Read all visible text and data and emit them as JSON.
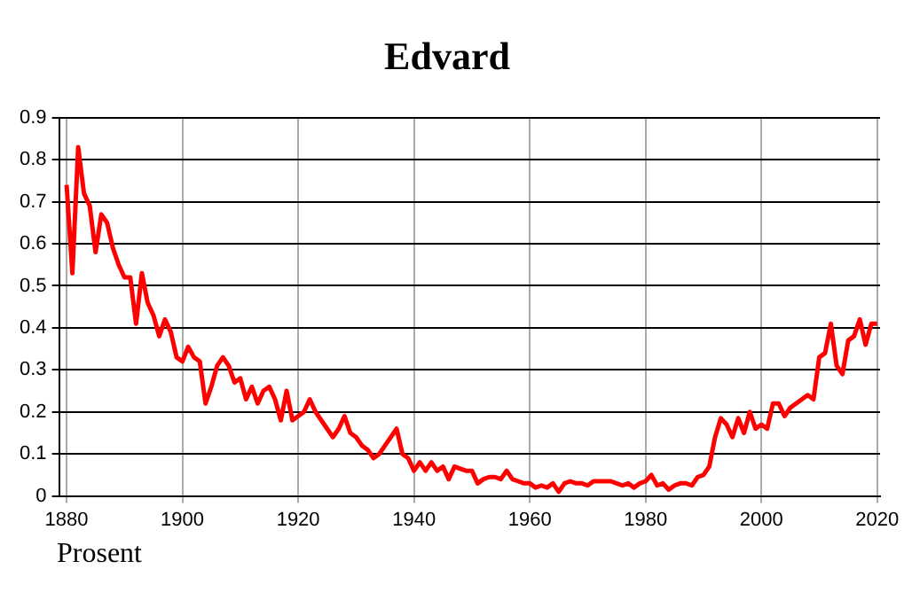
{
  "chart_data": {
    "type": "line",
    "title": "Edvard",
    "annotations": [
      "Prosent"
    ],
    "x": [
      1880,
      1881,
      1882,
      1883,
      1884,
      1885,
      1886,
      1887,
      1888,
      1889,
      1890,
      1891,
      1892,
      1893,
      1894,
      1895,
      1896,
      1897,
      1898,
      1899,
      1900,
      1901,
      1902,
      1903,
      1904,
      1905,
      1906,
      1907,
      1908,
      1909,
      1910,
      1911,
      1912,
      1913,
      1914,
      1915,
      1916,
      1917,
      1918,
      1919,
      1920,
      1921,
      1922,
      1923,
      1924,
      1925,
      1926,
      1927,
      1928,
      1929,
      1930,
      1931,
      1932,
      1933,
      1934,
      1935,
      1936,
      1937,
      1938,
      1939,
      1940,
      1941,
      1942,
      1943,
      1944,
      1945,
      1946,
      1947,
      1948,
      1949,
      1950,
      1951,
      1952,
      1953,
      1954,
      1955,
      1956,
      1957,
      1958,
      1959,
      1960,
      1961,
      1962,
      1963,
      1964,
      1965,
      1966,
      1967,
      1968,
      1969,
      1970,
      1971,
      1972,
      1973,
      1974,
      1975,
      1976,
      1977,
      1978,
      1979,
      1980,
      1981,
      1982,
      1983,
      1984,
      1985,
      1986,
      1987,
      1988,
      1989,
      1990,
      1991,
      1992,
      1993,
      1994,
      1995,
      1996,
      1997,
      1998,
      1999,
      2000,
      2001,
      2002,
      2003,
      2004,
      2005,
      2006,
      2007,
      2008,
      2009,
      2010,
      2011,
      2012,
      2013,
      2014,
      2015,
      2016,
      2017,
      2018,
      2019,
      2020
    ],
    "series": [
      {
        "color": "#ff0000",
        "values": [
          0.74,
          0.53,
          0.83,
          0.72,
          0.69,
          0.58,
          0.67,
          0.65,
          0.59,
          0.55,
          0.52,
          0.52,
          0.41,
          0.53,
          0.46,
          0.43,
          0.38,
          0.42,
          0.39,
          0.33,
          0.32,
          0.355,
          0.33,
          0.32,
          0.22,
          0.26,
          0.31,
          0.33,
          0.31,
          0.27,
          0.28,
          0.23,
          0.26,
          0.22,
          0.25,
          0.26,
          0.23,
          0.18,
          0.25,
          0.18,
          0.19,
          0.2,
          0.23,
          0.2,
          0.18,
          0.16,
          0.14,
          0.16,
          0.19,
          0.15,
          0.14,
          0.12,
          0.11,
          0.09,
          0.1,
          0.12,
          0.14,
          0.16,
          0.1,
          0.09,
          0.06,
          0.08,
          0.06,
          0.08,
          0.06,
          0.07,
          0.04,
          0.07,
          0.065,
          0.06,
          0.06,
          0.03,
          0.04,
          0.045,
          0.045,
          0.04,
          0.06,
          0.04,
          0.035,
          0.03,
          0.03,
          0.02,
          0.025,
          0.02,
          0.03,
          0.01,
          0.03,
          0.035,
          0.03,
          0.03,
          0.025,
          0.035,
          0.035,
          0.035,
          0.035,
          0.03,
          0.025,
          0.03,
          0.02,
          0.03,
          0.035,
          0.05,
          0.025,
          0.03,
          0.015,
          0.025,
          0.03,
          0.03,
          0.025,
          0.045,
          0.05,
          0.07,
          0.14,
          0.185,
          0.17,
          0.14,
          0.185,
          0.15,
          0.2,
          0.16,
          0.17,
          0.16,
          0.22,
          0.22,
          0.19,
          0.21,
          0.22,
          0.23,
          0.24,
          0.23,
          0.33,
          0.34,
          0.41,
          0.31,
          0.29,
          0.37,
          0.38,
          0.42,
          0.36,
          0.41,
          0.41
        ]
      }
    ],
    "xlim": [
      1878.7,
      2020.5
    ],
    "xticks": [
      1880,
      1900,
      1920,
      1940,
      1960,
      1980,
      2000,
      2020
    ],
    "ylim": [
      0,
      0.9
    ],
    "yticks": [
      0,
      0.1,
      0.2,
      0.3,
      0.4,
      0.5,
      0.6,
      0.7,
      0.8,
      0.9
    ],
    "grid": true,
    "legend": false,
    "line_style": "solid",
    "marker": "none"
  }
}
